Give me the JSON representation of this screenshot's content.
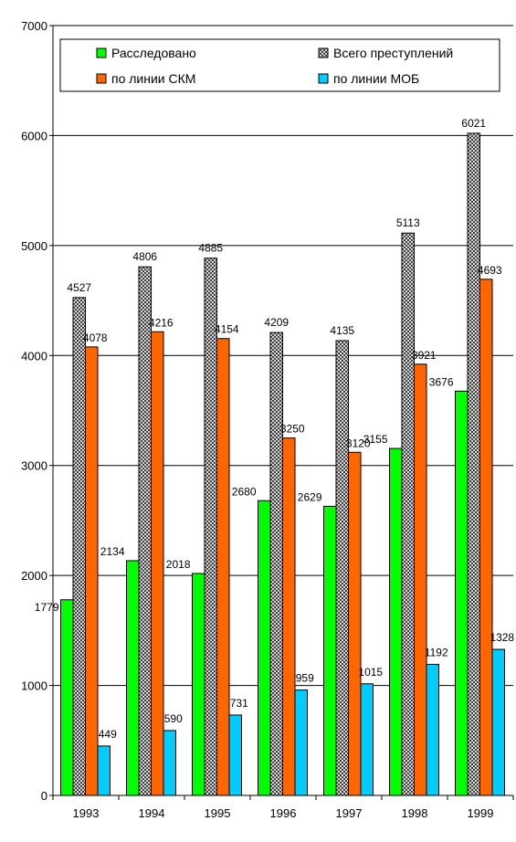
{
  "chart_data": {
    "type": "bar",
    "categories": [
      "1993",
      "1994",
      "1995",
      "1996",
      "1997",
      "1998",
      "1999"
    ],
    "series": [
      {
        "name": "Расследовано",
        "color": "#00ff00",
        "values": [
          1779,
          2134,
          2018,
          2680,
          2629,
          3155,
          3676
        ]
      },
      {
        "name": "Всего преступлений",
        "color": "#707070",
        "pattern": "checkered",
        "values": [
          4527,
          4806,
          4885,
          4209,
          4135,
          5113,
          6021
        ]
      },
      {
        "name": "по линии СКМ",
        "color": "#ff6600",
        "values": [
          4078,
          4216,
          4154,
          3250,
          3120,
          3921,
          4693
        ]
      },
      {
        "name": "по линии МОБ",
        "color": "#00ccff",
        "values": [
          449,
          590,
          731,
          959,
          1015,
          1192,
          1328
        ]
      }
    ],
    "ylim": [
      0,
      7000
    ],
    "yticks": [
      0,
      1000,
      2000,
      3000,
      4000,
      5000,
      6000,
      7000
    ],
    "grid": true,
    "legend_position": "top",
    "title": "",
    "xlabel": "",
    "ylabel": ""
  }
}
